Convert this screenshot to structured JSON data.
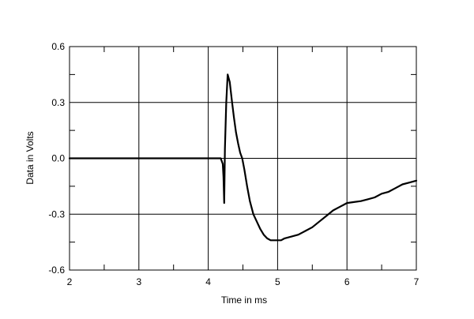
{
  "chart_data": {
    "type": "line",
    "title": "",
    "xlabel": "Time in ms",
    "ylabel": "Data in Volts",
    "xlim": [
      2,
      7
    ],
    "ylim": [
      -0.6,
      0.6
    ],
    "xticks": [
      2,
      3,
      4,
      5,
      6,
      7
    ],
    "xtick_labels": [
      "2",
      "3",
      "4",
      "5",
      "6",
      "7"
    ],
    "yticks": [
      -0.6,
      -0.3,
      0.0,
      0.3,
      0.6
    ],
    "ytick_labels": [
      "-0.6",
      "-0.3",
      "0.0",
      "0.3",
      "0.6"
    ],
    "grid": true,
    "legend": "none",
    "line_color": "#000000",
    "series": [
      {
        "x": [
          2.0,
          4.0,
          4.18,
          4.21,
          4.22,
          4.23,
          4.24,
          4.26,
          4.28,
          4.31,
          4.34,
          4.37,
          4.4,
          4.43,
          4.46,
          4.49,
          4.52,
          4.56,
          4.6,
          4.65,
          4.7,
          4.75,
          4.8,
          4.85,
          4.9,
          4.95,
          5.0,
          5.05,
          5.1,
          5.2,
          5.3,
          5.4,
          5.5,
          5.6,
          5.7,
          5.8,
          5.9,
          5.95,
          6.0,
          6.1,
          6.2,
          6.3,
          6.4,
          6.5,
          6.6,
          6.7,
          6.8,
          6.9,
          7.0
        ],
        "values": [
          0.0,
          0.0,
          0.0,
          -0.03,
          -0.1,
          -0.24,
          0.05,
          0.3,
          0.45,
          0.41,
          0.31,
          0.22,
          0.14,
          0.08,
          0.03,
          0.0,
          -0.06,
          -0.15,
          -0.23,
          -0.3,
          -0.34,
          -0.38,
          -0.41,
          -0.43,
          -0.44,
          -0.44,
          -0.44,
          -0.44,
          -0.43,
          -0.42,
          -0.41,
          -0.39,
          -0.37,
          -0.34,
          -0.31,
          -0.28,
          -0.26,
          -0.25,
          -0.24,
          -0.235,
          -0.23,
          -0.22,
          -0.21,
          -0.19,
          -0.18,
          -0.16,
          -0.14,
          -0.13,
          -0.12
        ]
      }
    ]
  }
}
